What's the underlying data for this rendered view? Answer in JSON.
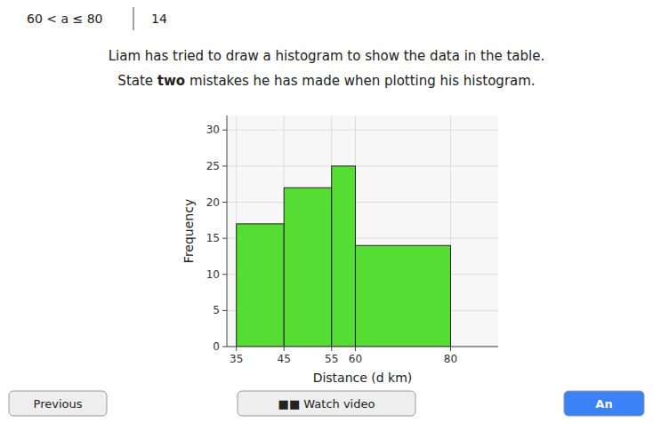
{
  "chart_data": {
    "type": "histogram",
    "bins": [
      35,
      45,
      55,
      60,
      80
    ],
    "values": [
      17,
      22,
      25,
      14
    ],
    "color": "#55dd33",
    "x_label": "Distance (d km)",
    "y_label": "Frequency",
    "xlim": [
      33,
      90
    ],
    "ylim": [
      0,
      32
    ],
    "xticks": [
      35,
      45,
      55,
      60,
      80
    ],
    "yticks": [
      0,
      5,
      10,
      15,
      20,
      25,
      30
    ],
    "grid": true
  },
  "texts": {
    "header_left": "60 < a ≤ 80",
    "header_right": "14",
    "line1": "Liam has tried to draw a histogram to show the data in the table.",
    "line2": [
      "State ",
      "two",
      " mistakes he has made when plotting his histogram."
    ],
    "bottom_left": "Previous",
    "bottom_center": "■■ Watch video",
    "bottom_right": "An"
  }
}
